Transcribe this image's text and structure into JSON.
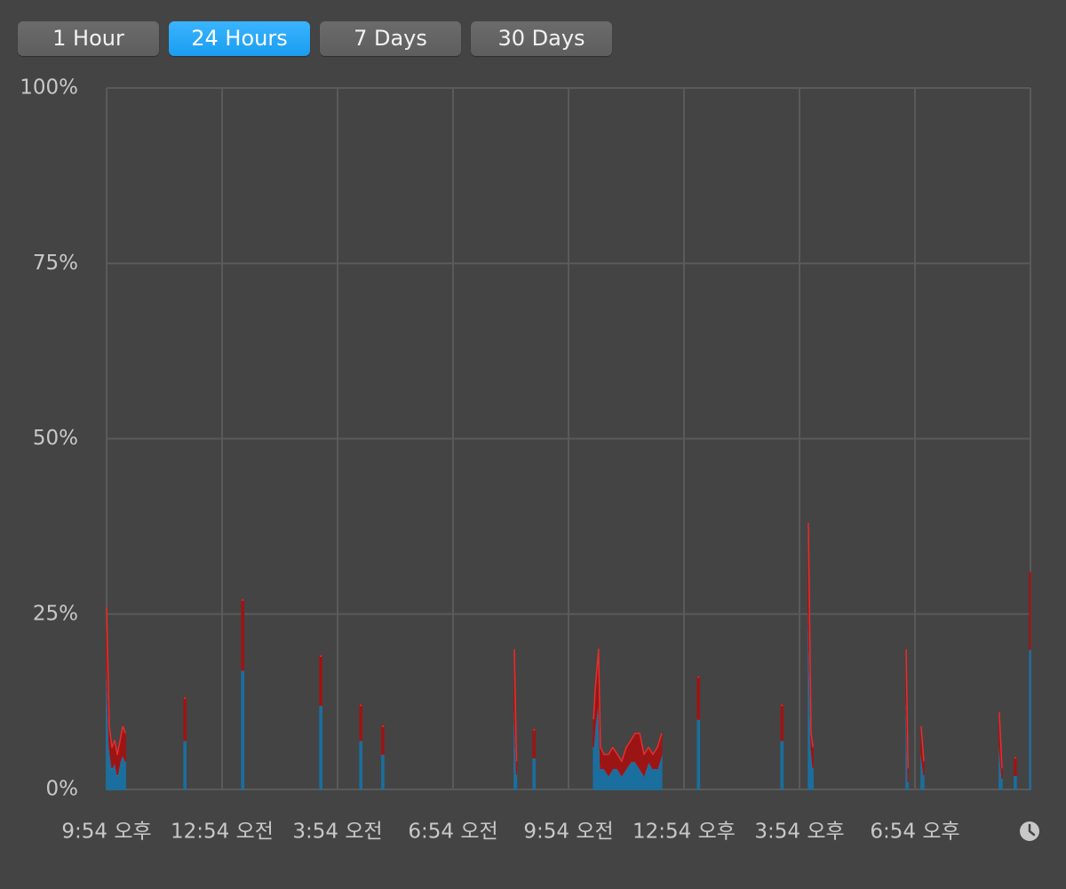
{
  "buttons": [
    "1 Hour",
    "24 Hours",
    "7 Days",
    "30 Days"
  ],
  "chart_data": {
    "type": "area",
    "x": [
      0,
      0.07,
      0.14,
      0.21,
      0.28,
      0.35,
      0.42,
      0.49,
      null,
      2.01,
      2.06,
      null,
      3.51,
      3.56,
      null,
      5.54,
      5.59,
      null,
      6.58,
      6.63,
      null,
      7.15,
      7.2,
      null,
      10.59,
      10.65,
      null,
      11.08,
      11.13,
      null,
      12.65,
      12.69,
      12.78,
      12.83,
      12.92,
      13.04,
      13.15,
      13.27,
      13.38,
      13.5,
      13.62,
      13.73,
      13.85,
      13.96,
      14.08,
      14.19,
      14.31,
      14.42,
      null,
      15.35,
      15.4,
      null,
      17.52,
      17.57,
      null,
      18.23,
      18.3,
      18.35,
      null,
      20.77,
      20.82,
      null,
      21.16,
      21.23,
      null,
      23.19,
      23.26,
      null,
      23.58,
      23.63,
      null,
      23.98,
      24
    ],
    "series": [
      {
        "color": "#1b6f9e",
        "line_color": "#5ab8ee",
        "values": [
          17,
          6,
          3,
          4,
          2,
          4,
          5,
          4,
          null,
          7,
          7,
          null,
          17,
          17,
          null,
          12,
          12,
          null,
          7,
          7,
          null,
          5,
          5,
          null,
          11,
          2,
          null,
          4.5,
          4.5,
          null,
          6,
          9,
          13,
          3,
          3,
          2,
          3,
          3,
          2,
          3,
          4,
          4,
          3,
          2,
          4,
          3,
          3,
          5,
          null,
          10,
          10,
          null,
          7,
          7,
          null,
          25,
          6,
          3,
          null,
          12,
          1,
          null,
          5,
          2,
          null,
          6,
          1.5,
          null,
          2,
          2,
          null,
          20,
          20
        ]
      },
      {
        "color": "#9c1515",
        "line_color": "#e33030",
        "values": [
          9,
          3,
          3,
          3,
          3,
          3,
          4,
          4,
          null,
          6,
          6,
          null,
          10,
          10,
          null,
          7,
          7,
          null,
          5,
          5,
          null,
          4,
          4,
          null,
          9,
          2,
          null,
          4,
          4,
          null,
          4,
          5,
          7,
          3,
          2,
          3,
          3,
          2,
          2,
          3,
          3,
          4,
          5,
          3,
          2,
          2,
          3,
          3,
          null,
          6,
          6,
          null,
          5,
          5,
          null,
          13,
          2,
          3,
          null,
          8,
          2,
          null,
          4,
          2,
          null,
          5,
          1.5,
          null,
          2.5,
          2.5,
          null,
          11,
          11
        ]
      }
    ],
    "xlim": [
      0,
      24
    ],
    "xticks": [
      {
        "value": 0,
        "label": "9:54 오후"
      },
      {
        "value": 3,
        "label": "12:54 오전"
      },
      {
        "value": 6,
        "label": "3:54 오전"
      },
      {
        "value": 9,
        "label": "6:54 오전"
      },
      {
        "value": 12,
        "label": "9:54 오전"
      },
      {
        "value": 15,
        "label": "12:54 오후"
      },
      {
        "value": 18,
        "label": "3:54 오후"
      },
      {
        "value": 21,
        "label": "6:54 오후"
      }
    ],
    "ylim": [
      0,
      100
    ],
    "yticks": [
      {
        "value": 0,
        "label": "0%"
      },
      {
        "value": 25,
        "label": "25%"
      },
      {
        "value": 50,
        "label": "50%"
      },
      {
        "value": 75,
        "label": "75%"
      },
      {
        "value": 100,
        "label": "100%"
      }
    ],
    "grid": true,
    "stacked": true
  }
}
